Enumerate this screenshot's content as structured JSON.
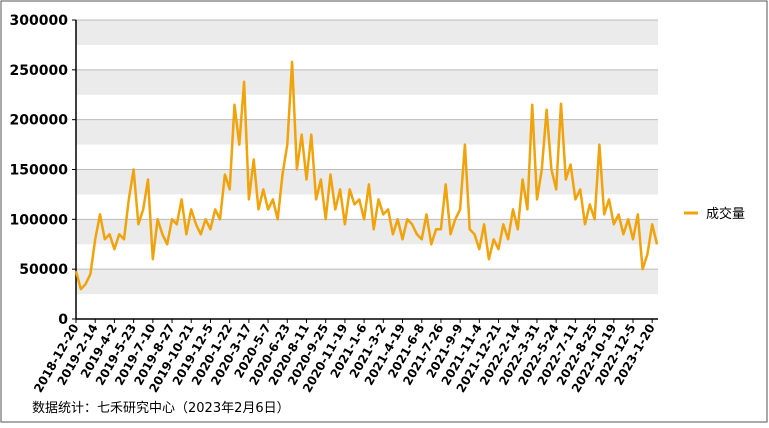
{
  "chart_data": {
    "type": "line",
    "categories": [
      "2018-12-20",
      null,
      null,
      null,
      "2019-2-14",
      null,
      null,
      null,
      "2019-4-2",
      null,
      null,
      null,
      "2019-5-23",
      null,
      null,
      null,
      "2019-7-10",
      null,
      null,
      null,
      "2019-8-27",
      null,
      null,
      null,
      "2019-10-21",
      null,
      null,
      null,
      "2019-12-5",
      null,
      null,
      null,
      "2020-1-22",
      null,
      null,
      null,
      "2020-3-17",
      null,
      null,
      null,
      "2020-5-7",
      null,
      null,
      null,
      "2020-6-23",
      null,
      null,
      null,
      "2020-8-11",
      null,
      null,
      null,
      "2020-9-25",
      null,
      null,
      null,
      "2020-11-19",
      null,
      null,
      null,
      "2021-1-6",
      null,
      null,
      null,
      "2021-3-2",
      null,
      null,
      null,
      "2021-4-19",
      null,
      null,
      null,
      "2021-6-8",
      null,
      null,
      null,
      "2021-7-26",
      null,
      null,
      null,
      "2021-9-9",
      null,
      null,
      null,
      "2021-11-4",
      null,
      null,
      null,
      "2021-12-21",
      null,
      null,
      null,
      "2022-2-14",
      null,
      null,
      null,
      "2022-3-31",
      null,
      null,
      null,
      "2022-5-24",
      null,
      null,
      null,
      "2022-7-11",
      null,
      null,
      null,
      "2022-8-25",
      null,
      null,
      null,
      "2022-10-19",
      null,
      null,
      null,
      "2022-12-5",
      null,
      null,
      null,
      "2023-1-20",
      null
    ],
    "series": [
      {
        "name": "成交量",
        "color": "#f0a30a",
        "values": [
          48000,
          30000,
          35000,
          45000,
          80000,
          105000,
          80000,
          85000,
          70000,
          85000,
          80000,
          120000,
          150000,
          95000,
          110000,
          140000,
          60000,
          100000,
          85000,
          75000,
          100000,
          95000,
          120000,
          85000,
          110000,
          95000,
          85000,
          100000,
          90000,
          110000,
          100000,
          145000,
          130000,
          215000,
          175000,
          238000,
          120000,
          160000,
          110000,
          130000,
          110000,
          120000,
          100000,
          145000,
          175000,
          258000,
          150000,
          185000,
          140000,
          185000,
          120000,
          140000,
          100000,
          145000,
          110000,
          130000,
          95000,
          130000,
          115000,
          120000,
          100000,
          135000,
          90000,
          120000,
          105000,
          110000,
          85000,
          100000,
          80000,
          100000,
          95000,
          85000,
          80000,
          105000,
          75000,
          90000,
          90000,
          135000,
          85000,
          100000,
          110000,
          175000,
          90000,
          85000,
          70000,
          95000,
          60000,
          80000,
          70000,
          95000,
          80000,
          110000,
          90000,
          140000,
          110000,
          215000,
          120000,
          150000,
          210000,
          150000,
          130000,
          216000,
          140000,
          155000,
          120000,
          130000,
          95000,
          115000,
          100000,
          175000,
          105000,
          120000,
          95000,
          105000,
          85000,
          100000,
          80000,
          105000,
          50000,
          65000,
          95000,
          75000
        ]
      }
    ],
    "ylim": [
      0,
      300000
    ],
    "yticks": [
      0,
      50000,
      100000,
      150000,
      200000,
      250000,
      300000
    ],
    "grid": true,
    "legend": "right",
    "footnote": "数据统计：七禾研究中心（2023年2月6日）"
  }
}
